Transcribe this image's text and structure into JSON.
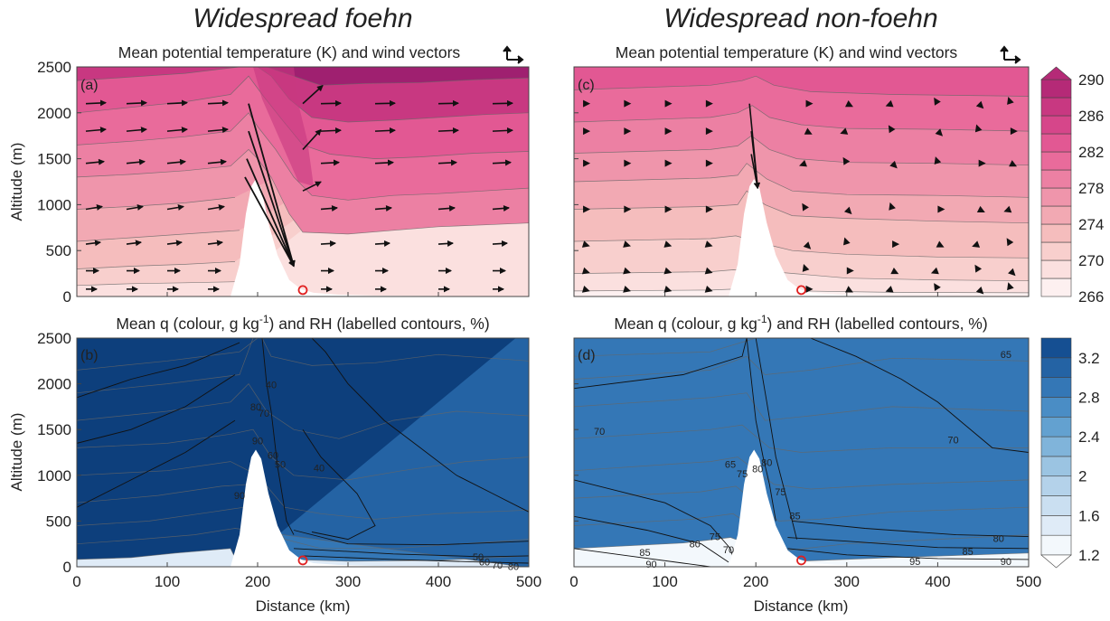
{
  "column_titles": [
    "Widespread foehn",
    "Widespread non-foehn"
  ],
  "panels": {
    "a": {
      "label": "(a)",
      "title": "Mean potential temperature (K) and wind vectors"
    },
    "b": {
      "label": "(b)",
      "title_prefix": "Mean q (colour, g kg",
      "title_sup": "-1",
      "title_suffix": ") and RH (labelled contours, %)"
    },
    "c": {
      "label": "(c)",
      "title": "Mean potential temperature (K) and wind vectors"
    },
    "d": {
      "label": "(d)",
      "title_prefix": "Mean q (colour, g kg",
      "title_sup": "-1",
      "title_suffix": ") and RH (labelled contours, %)"
    }
  },
  "axes": {
    "ylabel": "Altitude (m)",
    "xlabel": "Distance (km)"
  },
  "chart_data": [
    {
      "type": "heatmap",
      "panel": "a",
      "title": "Mean potential temperature (K) and wind vectors",
      "xlabel": "",
      "ylabel": "Altitude (m)",
      "xlim": [
        0,
        500
      ],
      "ylim": [
        0,
        2500
      ],
      "xticks": [],
      "yticks": [
        0,
        500,
        1000,
        1500,
        2000,
        2500
      ],
      "colorbar": {
        "levels": [
          266,
          268,
          270,
          272,
          274,
          276,
          278,
          280,
          282,
          284,
          286,
          288,
          290
        ],
        "labels": [
          "266",
          "270",
          "274",
          "278",
          "282",
          "286",
          "290"
        ],
        "extend": "max",
        "units": "K"
      },
      "contours": [
        {
          "value": 270,
          "points": [
            [
              0,
              120
            ],
            [
              60,
              140
            ],
            [
              120,
              150
            ],
            [
              175,
              160
            ]
          ]
        },
        {
          "value": 272,
          "points": [
            [
              0,
              300
            ],
            [
              60,
              330
            ],
            [
              120,
              350
            ],
            [
              175,
              380
            ]
          ]
        },
        {
          "value": 274,
          "points": [
            [
              0,
              600
            ],
            [
              60,
              640
            ],
            [
              120,
              680
            ],
            [
              180,
              720
            ]
          ]
        },
        {
          "value": 276,
          "points": [
            [
              0,
              950
            ],
            [
              60,
              980
            ],
            [
              120,
              1020
            ],
            [
              175,
              1080
            ]
          ]
        },
        {
          "value": 278,
          "points": [
            [
              0,
              1300
            ],
            [
              60,
              1330
            ],
            [
              120,
              1370
            ],
            [
              170,
              1420
            ],
            [
              190,
              1600
            ],
            [
              200,
              1500
            ],
            [
              215,
              1300
            ],
            [
              235,
              900
            ],
            [
              250,
              700
            ],
            [
              300,
              680
            ],
            [
              350,
              720
            ],
            [
              400,
              760
            ],
            [
              450,
              780
            ],
            [
              500,
              800
            ]
          ]
        },
        {
          "value": 280,
          "points": [
            [
              0,
              1650
            ],
            [
              60,
              1690
            ],
            [
              120,
              1740
            ],
            [
              170,
              1800
            ],
            [
              190,
              2000
            ],
            [
              200,
              1850
            ],
            [
              220,
              1600
            ],
            [
              240,
              1300
            ],
            [
              260,
              1100
            ],
            [
              300,
              1050
            ],
            [
              350,
              1100
            ],
            [
              400,
              1120
            ],
            [
              450,
              1150
            ],
            [
              500,
              1180
            ]
          ]
        },
        {
          "value": 282,
          "points": [
            [
              0,
              2000
            ],
            [
              60,
              2060
            ],
            [
              120,
              2120
            ],
            [
              170,
              2200
            ],
            [
              190,
              2400
            ],
            [
              205,
              2200
            ],
            [
              225,
              1950
            ],
            [
              250,
              1650
            ],
            [
              280,
              1550
            ],
            [
              330,
              1500
            ],
            [
              380,
              1520
            ],
            [
              440,
              1560
            ],
            [
              500,
              1580
            ]
          ]
        },
        {
          "value": 284,
          "points": [
            [
              0,
              2350
            ],
            [
              60,
              2390
            ],
            [
              120,
              2430
            ],
            [
              180,
              2500
            ],
            [
              200,
              2500
            ],
            [
              215,
              2400
            ],
            [
              235,
              2150
            ],
            [
              260,
              1950
            ],
            [
              300,
              1900
            ],
            [
              350,
              1920
            ],
            [
              400,
              1950
            ],
            [
              450,
              1980
            ],
            [
              500,
              2000
            ]
          ]
        },
        {
          "value": 286,
          "points": [
            [
              210,
              2500
            ],
            [
              240,
              2400
            ],
            [
              270,
              2300
            ],
            [
              320,
              2320
            ],
            [
              380,
              2330
            ],
            [
              440,
              2360
            ],
            [
              500,
              2380
            ]
          ]
        }
      ],
      "wind_vectors_note": "westerly flow, strong downslope vectors in lee of ridge",
      "site_marker": {
        "x": 250,
        "y": 70,
        "color": "#e02020"
      }
    },
    {
      "type": "heatmap",
      "panel": "b",
      "title": "Mean q (colour, g kg-1) and RH (labelled contours, %)",
      "xlabel": "Distance (km)",
      "ylabel": "Altitude (m)",
      "xlim": [
        0,
        500
      ],
      "ylim": [
        0,
        2500
      ],
      "xticks": [
        0,
        100,
        200,
        300,
        400,
        500
      ],
      "yticks": [
        0,
        500,
        1000,
        1500,
        2000,
        2500
      ],
      "colorbar": {
        "levels": [
          1.2,
          1.4,
          1.6,
          1.8,
          2.0,
          2.2,
          2.4,
          2.6,
          2.8,
          3.0,
          3.2,
          3.4
        ],
        "labels": [
          "1.2",
          "1.6",
          "2",
          "2.4",
          "2.8",
          "3.2"
        ],
        "extend": "min",
        "units": "g kg-1"
      },
      "rh_contours": [
        {
          "label": "40",
          "x": 215,
          "y": 1990
        },
        {
          "label": "80",
          "x": 198,
          "y": 1750
        },
        {
          "label": "70",
          "x": 207,
          "y": 1680
        },
        {
          "label": "90",
          "x": 200,
          "y": 1380
        },
        {
          "label": "60",
          "x": 217,
          "y": 1220
        },
        {
          "label": "50",
          "x": 225,
          "y": 1120
        },
        {
          "label": "40",
          "x": 268,
          "y": 1080
        },
        {
          "label": "90",
          "x": 180,
          "y": 780
        },
        {
          "label": "50",
          "x": 444,
          "y": 110
        },
        {
          "label": "60",
          "x": 451,
          "y": 55
        },
        {
          "label": "70",
          "x": 465,
          "y": 20
        },
        {
          "label": "80",
          "x": 483,
          "y": 5
        }
      ],
      "site_marker": {
        "x": 250,
        "y": 70,
        "color": "#e02020"
      }
    },
    {
      "type": "heatmap",
      "panel": "c",
      "title": "Mean potential temperature (K) and wind vectors",
      "xlabel": "",
      "ylabel": "",
      "xlim": [
        0,
        500
      ],
      "ylim": [
        0,
        2500
      ],
      "xticks": [],
      "yticks": [],
      "colorbar": "shared with (a)",
      "wind_vectors_note": "weak, variable vectors; strong downslope only near ridge crest",
      "site_marker": {
        "x": 250,
        "y": 70,
        "color": "#e02020"
      }
    },
    {
      "type": "heatmap",
      "panel": "d",
      "title": "Mean q (colour, g kg-1) and RH (labelled contours, %)",
      "xlabel": "Distance (km)",
      "ylabel": "",
      "xlim": [
        0,
        500
      ],
      "ylim": [
        0,
        2500
      ],
      "xticks": [
        0,
        100,
        200,
        300,
        400,
        500
      ],
      "yticks": [],
      "colorbar": "shared with (b)",
      "rh_contours": [
        {
          "label": "65",
          "x": 475,
          "y": 2320
        },
        {
          "label": "70",
          "x": 28,
          "y": 1480
        },
        {
          "label": "70",
          "x": 417,
          "y": 1390
        },
        {
          "label": "65",
          "x": 172,
          "y": 1120
        },
        {
          "label": "75",
          "x": 185,
          "y": 1020
        },
        {
          "label": "80",
          "x": 202,
          "y": 1070
        },
        {
          "label": "80",
          "x": 212,
          "y": 1140
        },
        {
          "label": "75",
          "x": 227,
          "y": 820
        },
        {
          "label": "85",
          "x": 243,
          "y": 560
        },
        {
          "label": "80",
          "x": 133,
          "y": 250
        },
        {
          "label": "75",
          "x": 155,
          "y": 330
        },
        {
          "label": "70",
          "x": 170,
          "y": 190
        },
        {
          "label": "85",
          "x": 78,
          "y": 160
        },
        {
          "label": "90",
          "x": 85,
          "y": 30
        },
        {
          "label": "80",
          "x": 467,
          "y": 310
        },
        {
          "label": "85",
          "x": 433,
          "y": 170
        },
        {
          "label": "90",
          "x": 475,
          "y": 60
        },
        {
          "label": "95",
          "x": 375,
          "y": 60
        }
      ],
      "site_marker": {
        "x": 250,
        "y": 70,
        "color": "#e02020"
      }
    }
  ],
  "colors": {
    "theta_scale": [
      "#fdf0f0",
      "#fbe0df",
      "#f8cfcd",
      "#f5bdbd",
      "#f2a9b3",
      "#ef95ab",
      "#ec80a3",
      "#e96b9b",
      "#e25893",
      "#d6468a",
      "#c83881",
      "#b52a77",
      "#9f2070"
    ],
    "q_scale": [
      "#f3f8fc",
      "#dfebf7",
      "#cadff1",
      "#b4d2ea",
      "#9bc4e2",
      "#80b4da",
      "#63a1d0",
      "#4a8dc5",
      "#3477b6",
      "#2463a4",
      "#154f92",
      "#0d3f7c"
    ],
    "site_marker": "#e02020"
  }
}
